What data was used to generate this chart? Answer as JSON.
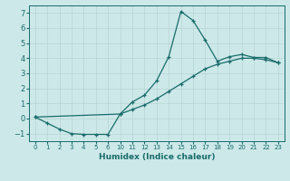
{
  "xlabel": "Humidex (Indice chaleur)",
  "background_color": "#cce8e8",
  "grid_color": "#b8d4d4",
  "line_color": "#1a6b6b",
  "xlim": [
    -0.5,
    20.5
  ],
  "ylim": [
    -1.5,
    7.5
  ],
  "yticks": [
    -1,
    0,
    1,
    2,
    3,
    4,
    5,
    6,
    7
  ],
  "xtick_labels": [
    "0",
    "1",
    "2",
    "3",
    "4",
    "5",
    "6",
    "10",
    "11",
    "12",
    "13",
    "14",
    "15",
    "16",
    "17",
    "18",
    "19",
    "20",
    "21",
    "22",
    "23"
  ],
  "line1_x": [
    0,
    1,
    2,
    3,
    4,
    5,
    6,
    7,
    8,
    9,
    10,
    11,
    12,
    13,
    14,
    15,
    16,
    17,
    18,
    19,
    20
  ],
  "line1_y": [
    0.1,
    -0.3,
    -0.7,
    -1.0,
    -1.05,
    -1.05,
    -1.05,
    0.3,
    1.1,
    1.55,
    2.5,
    4.1,
    7.1,
    6.5,
    5.2,
    3.8,
    4.1,
    4.25,
    4.05,
    4.05,
    3.7
  ],
  "line2_x": [
    0,
    7,
    8,
    9,
    10,
    11,
    12,
    13,
    14,
    15,
    16,
    17,
    18,
    19,
    20
  ],
  "line2_y": [
    0.1,
    0.3,
    0.6,
    0.9,
    1.3,
    1.8,
    2.3,
    2.8,
    3.3,
    3.6,
    3.8,
    4.0,
    4.0,
    3.9,
    3.7
  ]
}
